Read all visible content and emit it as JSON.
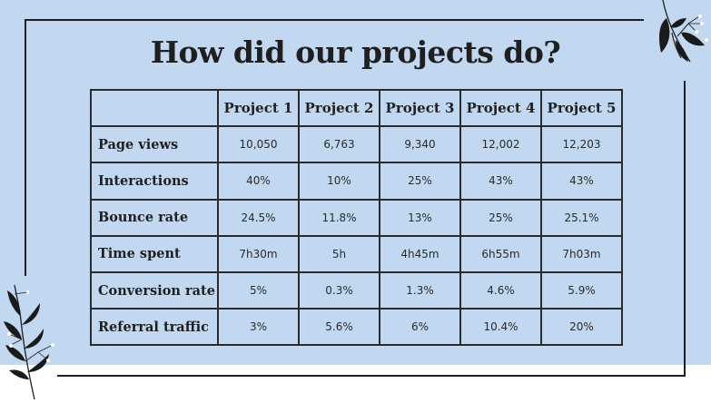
{
  "slide": {
    "title": "How did our projects do?"
  },
  "table": {
    "columns": [
      "",
      "Project 1",
      "Project 2",
      "Project 3",
      "Project 4",
      "Project 5"
    ],
    "rows": [
      {
        "label": "Page views",
        "values": [
          "10,050",
          "6,763",
          "9,340",
          "12,002",
          "12,203"
        ]
      },
      {
        "label": "Interactions",
        "values": [
          "40%",
          "10%",
          "25%",
          "43%",
          "43%"
        ]
      },
      {
        "label": "Bounce rate",
        "values": [
          "24.5%",
          "11.8%",
          "13%",
          "25%",
          "25.1%"
        ]
      },
      {
        "label": "Time spent",
        "values": [
          "7h30m",
          "5h",
          "4h45m",
          "6h55m",
          "7h03m"
        ]
      },
      {
        "label": "Conversion rate",
        "values": [
          "5%",
          "0.3%",
          "1.3%",
          "4.6%",
          "5.9%"
        ]
      },
      {
        "label": "Referral traffic",
        "values": [
          "3%",
          "5.6%",
          "6%",
          "10.4%",
          "20%"
        ]
      }
    ]
  },
  "decorations": {
    "background_color": "#c2d8f0",
    "line_color": "#1f1f1f",
    "leaf_icon_top": "leaf-branch-icon",
    "leaf_icon_bottom": "leaf-branch-icon"
  }
}
